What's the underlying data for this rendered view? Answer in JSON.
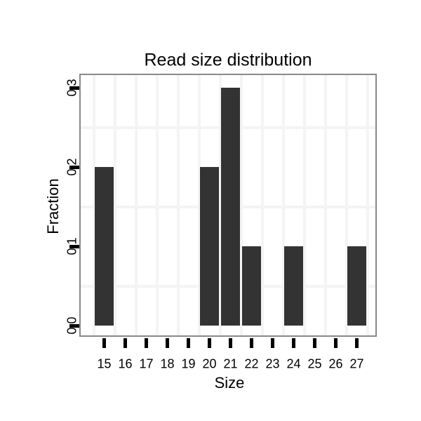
{
  "chart_data": {
    "type": "bar",
    "title": "Read size distribution",
    "xlabel": "Size",
    "ylabel": "Fraction",
    "categories": [
      15,
      16,
      17,
      18,
      19,
      20,
      21,
      22,
      23,
      24,
      25,
      26,
      27
    ],
    "values": [
      0.2,
      0,
      0,
      0,
      0,
      0.2,
      0.3,
      0.1,
      0,
      0.1,
      0,
      0,
      0.1
    ],
    "x_tick_labels": [
      "15",
      "16",
      "17",
      "18",
      "19",
      "20",
      "21",
      "22",
      "23",
      "24",
      "25",
      "26",
      "27"
    ],
    "y_ticks": [
      0.0,
      0.1,
      0.2,
      0.3
    ],
    "y_tick_labels": [
      "0.0",
      "0.1",
      "0.2",
      "0.3"
    ],
    "ylim": [
      0,
      0.3
    ],
    "xlim": [
      14.5,
      27.5
    ],
    "grid": "minor-only",
    "x_minor_gridlines": [
      14.5,
      15.5,
      16.5,
      17.5,
      18.5,
      19.5,
      20.5,
      21.5,
      22.5,
      23.5,
      24.5,
      25.5,
      26.5,
      27.5
    ],
    "y_minor_gridlines": [
      0.05,
      0.15,
      0.25
    ],
    "legend": "none",
    "colors": {
      "bar_fill": "#333333",
      "panel_border": "#898989",
      "gridline": "#f4f4f4",
      "tick_mark": "#000000",
      "text": "#000000",
      "background": "#ffffff"
    }
  }
}
